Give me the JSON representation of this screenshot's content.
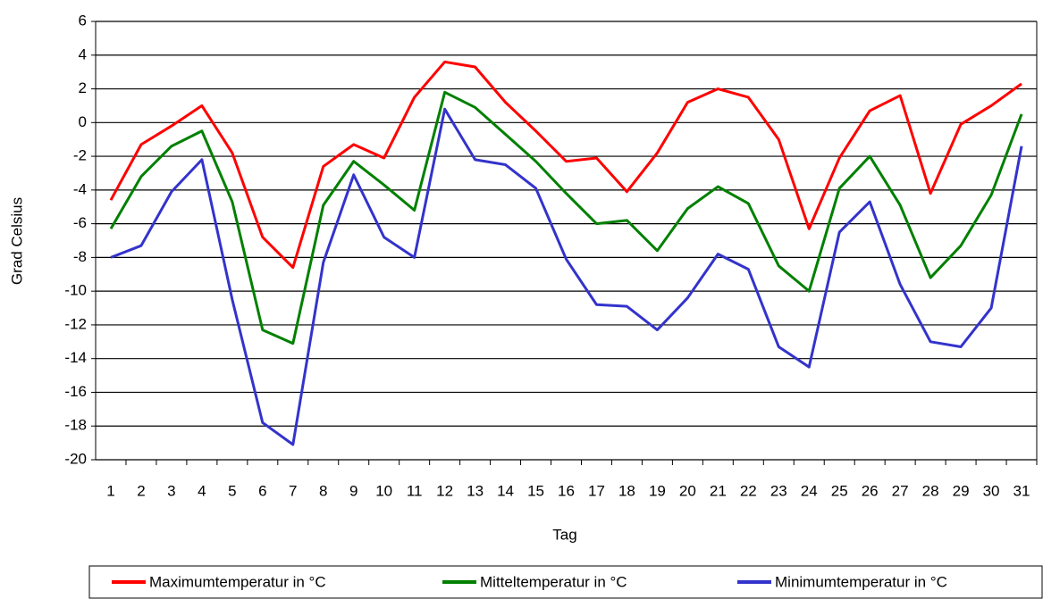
{
  "chart_data": {
    "type": "line",
    "x_label": "Tag",
    "y_label": "Grad Celsius",
    "categories": [
      "1",
      "2",
      "3",
      "4",
      "5",
      "6",
      "7",
      "8",
      "9",
      "10",
      "11",
      "12",
      "13",
      "14",
      "15",
      "16",
      "17",
      "18",
      "19",
      "20",
      "21",
      "22",
      "23",
      "24",
      "25",
      "26",
      "27",
      "28",
      "29",
      "30",
      "31"
    ],
    "series": [
      {
        "name": "Maximumtemperatur in °C",
        "color": "#ff0000",
        "values": [
          -4.6,
          -1.3,
          -0.2,
          1.0,
          -1.8,
          -6.8,
          -8.6,
          -2.6,
          -1.3,
          -2.1,
          1.5,
          3.6,
          3.3,
          1.2,
          -0.5,
          -2.3,
          -2.1,
          -4.1,
          -1.8,
          1.2,
          2.0,
          1.5,
          -1.0,
          -6.3,
          -2.1,
          0.7,
          1.6,
          -4.2,
          -0.1,
          1.0,
          2.3
        ]
      },
      {
        "name": "Mitteltemperatur in °C",
        "color": "#008000",
        "values": [
          -6.3,
          -3.2,
          -1.4,
          -0.5,
          -4.7,
          -12.3,
          -13.1,
          -4.9,
          -2.3,
          -3.7,
          -5.2,
          1.8,
          0.9,
          -0.7,
          -2.3,
          -4.2,
          -6.0,
          -5.8,
          -7.6,
          -5.1,
          -3.8,
          -4.8,
          -8.5,
          -10.0,
          -3.9,
          -2.0,
          -4.9,
          -9.2,
          -7.3,
          -4.3,
          0.5
        ]
      },
      {
        "name": "Minimumtemperatur in °C",
        "color": "#3333cc",
        "values": [
          -8.0,
          -7.3,
          -4.1,
          -2.2,
          -10.5,
          -17.8,
          -19.1,
          -8.3,
          -3.1,
          -6.8,
          -8.0,
          0.8,
          -2.2,
          -2.5,
          -3.9,
          -8.1,
          -10.8,
          -10.9,
          -12.3,
          -10.4,
          -7.8,
          -8.7,
          -13.3,
          -14.5,
          -6.5,
          -4.7,
          -9.6,
          -13.0,
          -13.3,
          -11.0,
          -1.4
        ]
      }
    ],
    "ylim": [
      -20,
      6
    ],
    "yticks": [
      -20,
      -18,
      -16,
      -14,
      -12,
      -10,
      -8,
      -6,
      -4,
      -2,
      0,
      2,
      4,
      6
    ],
    "grid": true,
    "legend": "bottom"
  }
}
